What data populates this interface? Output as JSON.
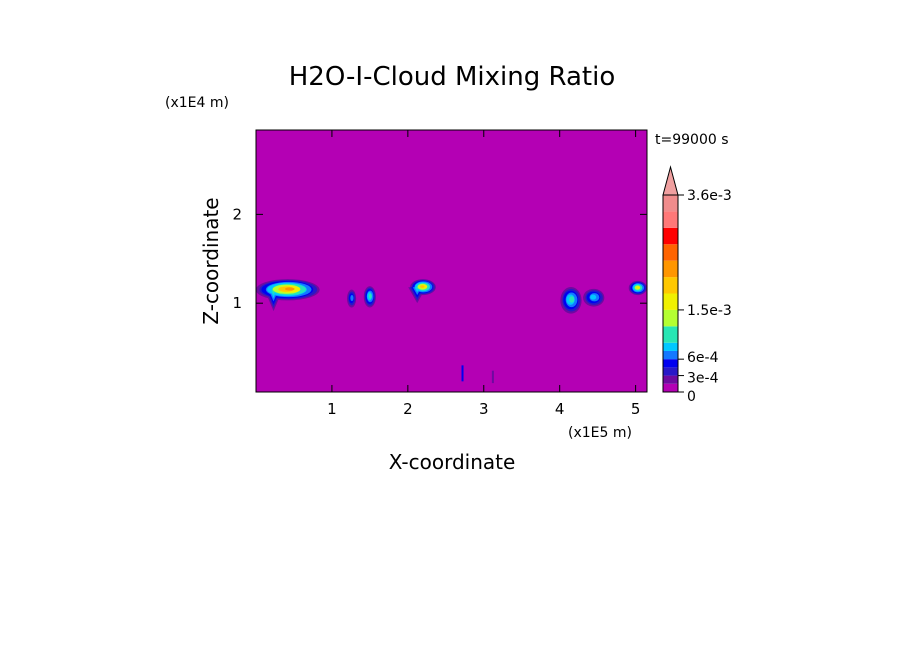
{
  "chart_data": {
    "type": "heatmap",
    "title": "H2O-I-Cloud Mixing Ratio",
    "xlabel": "X-coordinate",
    "ylabel": "Z-coordinate",
    "x_unit": "(x1E5 m)",
    "y_unit": "(x1E4 m)",
    "time_label": "t=99000 s",
    "xlim": [
      0,
      5.15
    ],
    "ylim": [
      0,
      2.95
    ],
    "x_ticks": [
      {
        "value": 1,
        "label": "1"
      },
      {
        "value": 2,
        "label": "2"
      },
      {
        "value": 3,
        "label": "3"
      },
      {
        "value": 4,
        "label": "4"
      },
      {
        "value": 5,
        "label": "5"
      }
    ],
    "y_ticks": [
      {
        "value": 1,
        "label": "1"
      },
      {
        "value": 2,
        "label": "2"
      }
    ],
    "background_color": "#b400b4",
    "colorbar": {
      "levels": [
        0,
        0.00015,
        0.0003,
        0.00045,
        0.0006,
        0.00075,
        0.0009,
        0.0012,
        0.0015,
        0.0018,
        0.0021,
        0.0024,
        0.0027,
        0.003,
        0.0033,
        0.0036
      ],
      "colors": [
        "#b400b4",
        "#6e0aa0",
        "#2818c8",
        "#0000f0",
        "#1478ff",
        "#00c8ff",
        "#28e6b4",
        "#b4ff32",
        "#f0f000",
        "#ffc800",
        "#ff9600",
        "#ff6400",
        "#ff0000",
        "#ff7878",
        "#f08c8c",
        "#f0a0a0"
      ],
      "labels": [
        {
          "value": 0,
          "text": "0"
        },
        {
          "value": 0.0003,
          "text": "3e-4"
        },
        {
          "value": 0.0006,
          "text": "6e-4"
        },
        {
          "value": 0.0015,
          "text": "1.5e-3"
        },
        {
          "value": 0.0036,
          "text": "3.6e-3"
        }
      ],
      "extend": "max"
    },
    "features": [
      {
        "kind": "blob",
        "x": 0.42,
        "z": 1.15,
        "rx": 0.42,
        "rz": 0.12,
        "max_level": 10,
        "tail": true
      },
      {
        "kind": "blob",
        "x": 1.26,
        "z": 1.05,
        "rx": 0.06,
        "rz": 0.1,
        "max_level": 4
      },
      {
        "kind": "blob",
        "x": 1.5,
        "z": 1.07,
        "rx": 0.08,
        "rz": 0.12,
        "max_level": 6
      },
      {
        "kind": "blob",
        "x": 2.2,
        "z": 1.18,
        "rx": 0.17,
        "rz": 0.09,
        "max_level": 9,
        "tail": true
      },
      {
        "kind": "blob",
        "x": 4.15,
        "z": 1.03,
        "rx": 0.14,
        "rz": 0.15,
        "max_level": 6
      },
      {
        "kind": "blob",
        "x": 4.45,
        "z": 1.06,
        "rx": 0.14,
        "rz": 0.1,
        "max_level": 5
      },
      {
        "kind": "blob",
        "x": 5.03,
        "z": 1.17,
        "rx": 0.12,
        "rz": 0.08,
        "max_level": 8
      },
      {
        "kind": "streak",
        "x": 2.72,
        "z0": 0.12,
        "z1": 0.3,
        "max_level": 3
      },
      {
        "kind": "streak",
        "x": 3.12,
        "z0": 0.1,
        "z1": 0.24,
        "max_level": 1
      }
    ]
  }
}
